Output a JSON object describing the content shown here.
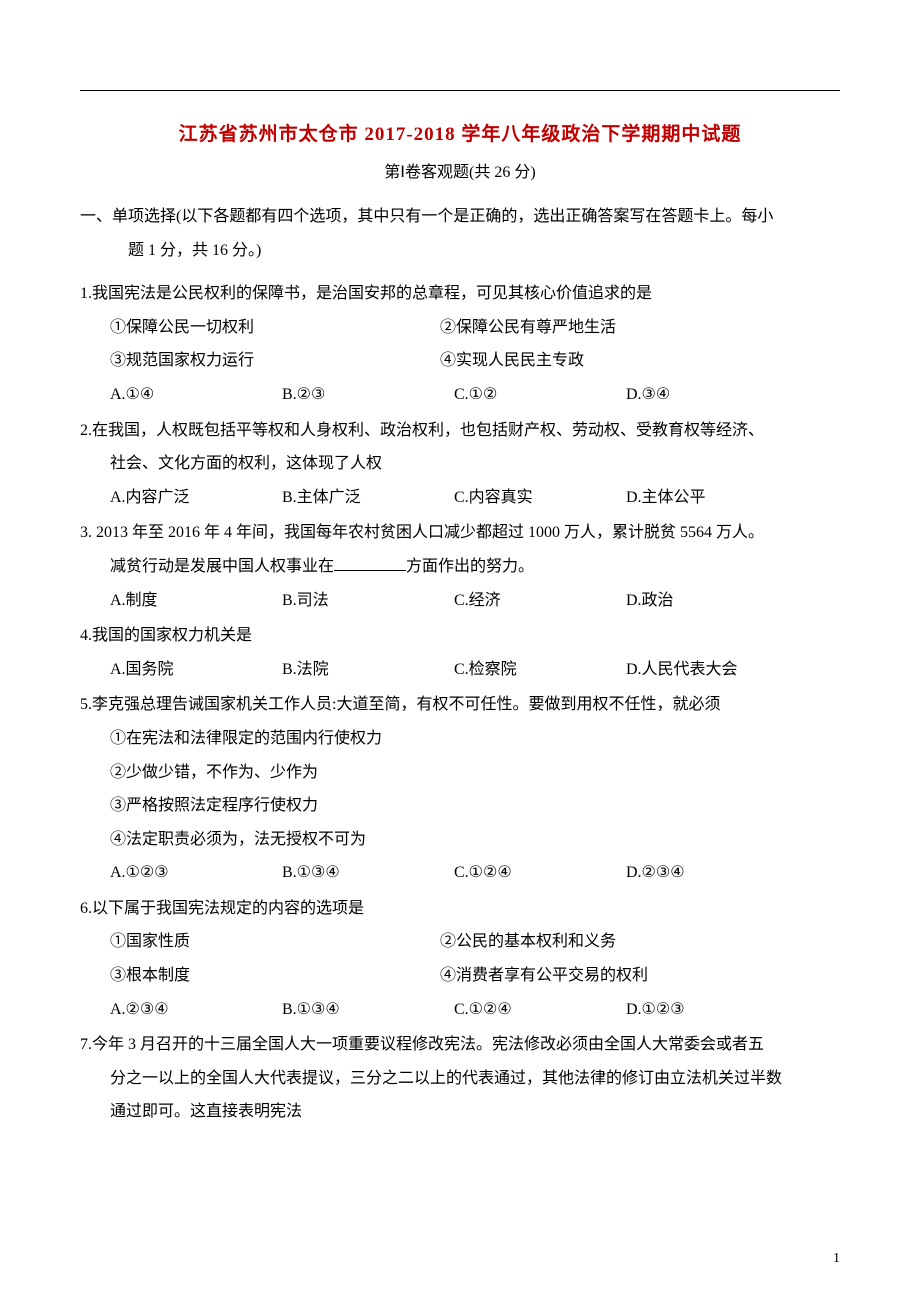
{
  "title": "江苏省苏州市太仓市 2017-2018 学年八年级政治下学期期中试题",
  "subtitle": "第Ⅰ卷客观题(共 26 分)",
  "section1": {
    "line1": "一、单项选择(以下各题都有四个选项，其中只有一个是正确的，选出正确答案写在答题卡上。每小",
    "line2": "题 1 分，共 16 分。)"
  },
  "q1": {
    "stem": "1.我国宪法是公民权利的保障书，是治国安邦的总章程，可见其核心价值追求的是",
    "o1": "①保障公民一切权利",
    "o2": "②保障公民有尊严地生活",
    "o3": "③规范国家权力运行",
    "o4": "④实现人民民主专政",
    "a": "A.①④",
    "b": "B.②③",
    "c": "C.①②",
    "d": "D.③④"
  },
  "q2": {
    "stem1": "2.在我国，人权既包括平等权和人身权利、政治权利，也包括财产权、劳动权、受教育权等经济、",
    "stem2": "社会、文化方面的权利，这体现了人权",
    "a": "A.内容广泛",
    "b": "B.主体广泛",
    "c": "C.内容真实",
    "d": "D.主体公平"
  },
  "q3": {
    "stem1": "3. 2013 年至 2016 年 4 年间，我国每年农村贫困人口减少都超过 1000 万人，累计脱贫 5564 万人。",
    "stem2a": "减贫行动是发展中国人权事业在",
    "stem2b": "方面作出的努力。",
    "a": "A.制度",
    "b": "B.司法",
    "c": "C.经济",
    "d": "D.政治"
  },
  "q4": {
    "stem": "4.我国的国家权力机关是",
    "a": "A.国务院",
    "b": "B.法院",
    "c": "C.检察院",
    "d": "D.人民代表大会"
  },
  "q5": {
    "stem": "5.李克强总理告诫国家机关工作人员:大道至简，有权不可任性。要做到用权不任性，就必须",
    "o1": "①在宪法和法律限定的范围内行使权力",
    "o2": "②少做少错，不作为、少作为",
    "o3": "③严格按照法定程序行使权力",
    "o4": "④法定职责必须为，法无授权不可为",
    "a": "A.①②③",
    "b": "B.①③④",
    "c": "C.①②④",
    "d": "D.②③④"
  },
  "q6": {
    "stem": "6.以下属于我国宪法规定的内容的选项是",
    "o1": "①国家性质",
    "o2": "②公民的基本权利和义务",
    "o3": "③根本制度",
    "o4": "④消费者享有公平交易的权利",
    "a": "A.②③④",
    "b": "B.①③④",
    "c": "C.①②④",
    "d": "D.①②③"
  },
  "q7": {
    "stem1": "7.今年 3 月召开的十三届全国人大一项重要议程修改宪法。宪法修改必须由全国人大常委会或者五",
    "stem2": "分之一以上的全国人大代表提议，三分之二以上的代表通过，其他法律的修订由立法机关过半数",
    "stem3": "通过即可。这直接表明宪法"
  },
  "pageNum": "1",
  "colors": {
    "title_color": "#be0000",
    "text_color": "#000000",
    "background": "#ffffff"
  },
  "typography": {
    "title_fontsize": 19,
    "body_fontsize": 16,
    "line_height": 2.1,
    "font_family": "SimSun"
  }
}
